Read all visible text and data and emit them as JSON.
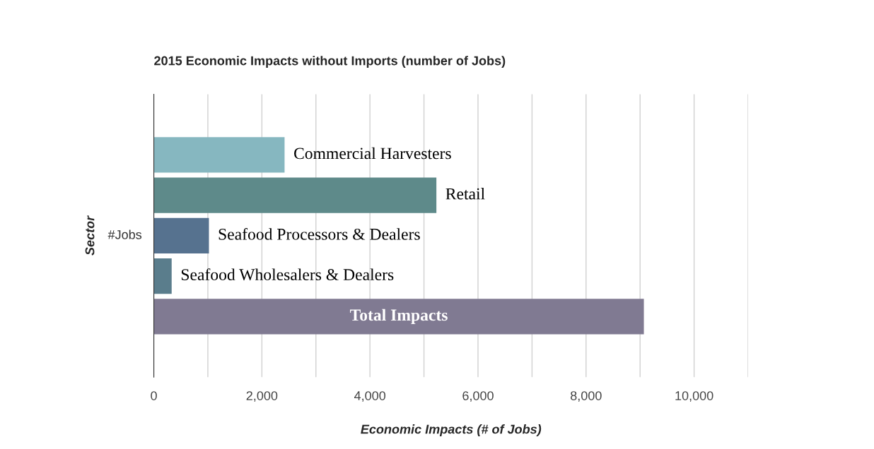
{
  "chart_data": {
    "type": "bar",
    "orientation": "horizontal",
    "title": "2015 Economic Impacts without Imports (number of Jobs)",
    "xlabel": "Economic Impacts (# of Jobs)",
    "ylabel": "Sector",
    "categories": [
      "Commercial Harvesters",
      "Retail",
      "Seafood Processors & Dealers",
      "Seafood Wholesalers & Dealers",
      "Total Impacts"
    ],
    "values": [
      2420,
      5230,
      1020,
      330,
      9070
    ],
    "colors": [
      "#86b7c0",
      "#5e8a8a",
      "#56728f",
      "#5a7d8c",
      "#807a92"
    ],
    "annotations": [
      "#Jobs"
    ],
    "xlim": [
      0,
      11000
    ],
    "xticks": [
      0,
      {
        "value": 1000,
        "label": null
      },
      {
        "value": 2000,
        "label": "2,000"
      },
      {
        "value": 3000,
        "label": null
      },
      {
        "value": 4000,
        "label": "4,000"
      },
      {
        "value": 5000,
        "label": null
      },
      {
        "value": 6000,
        "label": "6,000"
      },
      {
        "value": 7000,
        "label": null
      },
      {
        "value": 8000,
        "label": "8,000"
      },
      {
        "value": 9000,
        "label": null
      },
      {
        "value": 10000,
        "label": "10,000"
      },
      {
        "value": 11000,
        "label": null
      }
    ],
    "grid": "x"
  }
}
